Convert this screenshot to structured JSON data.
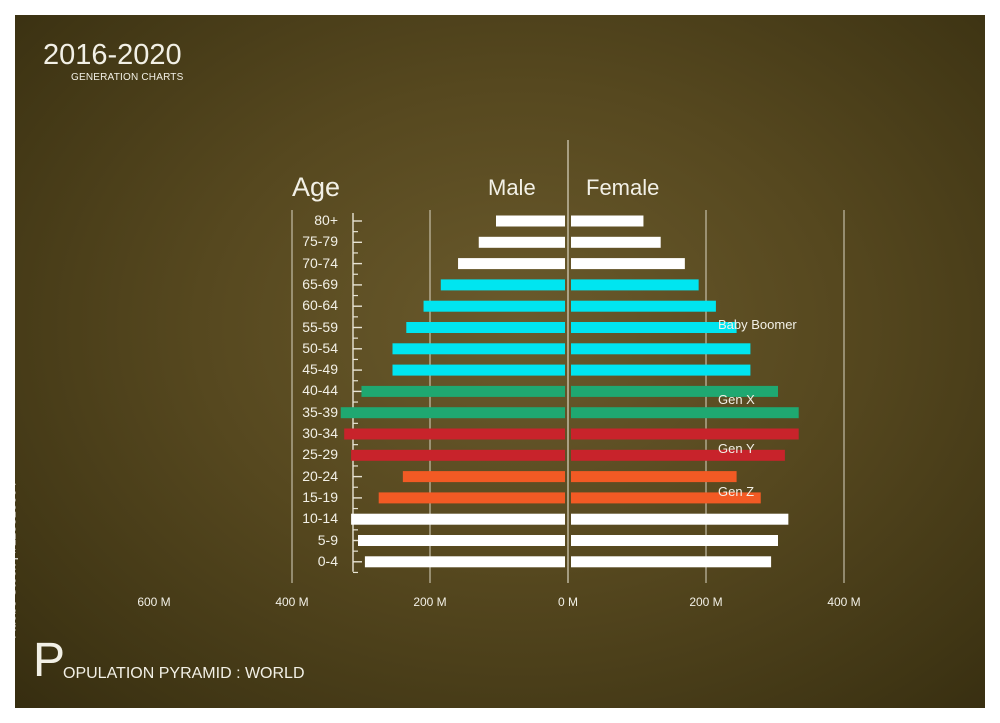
{
  "title": "2016-2020",
  "subtitle": "GENERATION CHARTS",
  "footer": {
    "initial": "P",
    "rest": "OPULATION PYRAMID : WORLD"
  },
  "stock_id": "Adobe Stock | #118813664",
  "colors": {
    "white": "#ffffff",
    "baby_boomer": "#00e5f0",
    "gen_x": "#1fa871",
    "gen_y": "#c8232b",
    "gen_z": "#f25a24",
    "axis": "#e8e4d4"
  },
  "chart_data": {
    "type": "bar",
    "orientation": "horizontal-pyramid",
    "title": "POPULATION PYRAMID : WORLD",
    "ylabel": "Age",
    "left_header": "Male",
    "right_header": "Female",
    "categories": [
      "80+",
      "75-79",
      "70-74",
      "65-69",
      "60-64",
      "55-59",
      "50-54",
      "45-49",
      "40-44",
      "35-39",
      "30-34",
      "25-29",
      "20-24",
      "15-19",
      "10-14",
      "5-9",
      "0-4"
    ],
    "series": [
      {
        "name": "Male",
        "values": [
          100,
          125,
          155,
          180,
          205,
          230,
          250,
          250,
          295,
          325,
          320,
          310,
          235,
          270,
          310,
          300,
          290
        ]
      },
      {
        "name": "Female",
        "values": [
          105,
          130,
          165,
          185,
          210,
          240,
          260,
          260,
          300,
          330,
          330,
          310,
          240,
          275,
          315,
          300,
          290
        ]
      }
    ],
    "bar_groups": [
      "white",
      "white",
      "white",
      "baby_boomer",
      "baby_boomer",
      "baby_boomer",
      "baby_boomer",
      "baby_boomer",
      "gen_x",
      "gen_x",
      "gen_y",
      "gen_y",
      "gen_z",
      "gen_z",
      "white",
      "white",
      "white"
    ],
    "xlim": [
      -600,
      400
    ],
    "x_ticks": [
      {
        "value": -600,
        "label": "600 M"
      },
      {
        "value": -400,
        "label": "400 M"
      },
      {
        "value": -200,
        "label": "200 M"
      },
      {
        "value": 0,
        "label": "0 M"
      },
      {
        "value": 200,
        "label": "200 M"
      },
      {
        "value": 400,
        "label": "400 M"
      }
    ],
    "gridlines_at": [
      -400,
      -200,
      0,
      200,
      400
    ],
    "annotations": [
      {
        "label": "Baby Boomer",
        "category": "55-59"
      },
      {
        "label": "Gen X",
        "category": "35-39"
      },
      {
        "label": "Gen Y",
        "category": "25-29"
      },
      {
        "label": "Gen Z",
        "category": "20-24"
      }
    ]
  }
}
